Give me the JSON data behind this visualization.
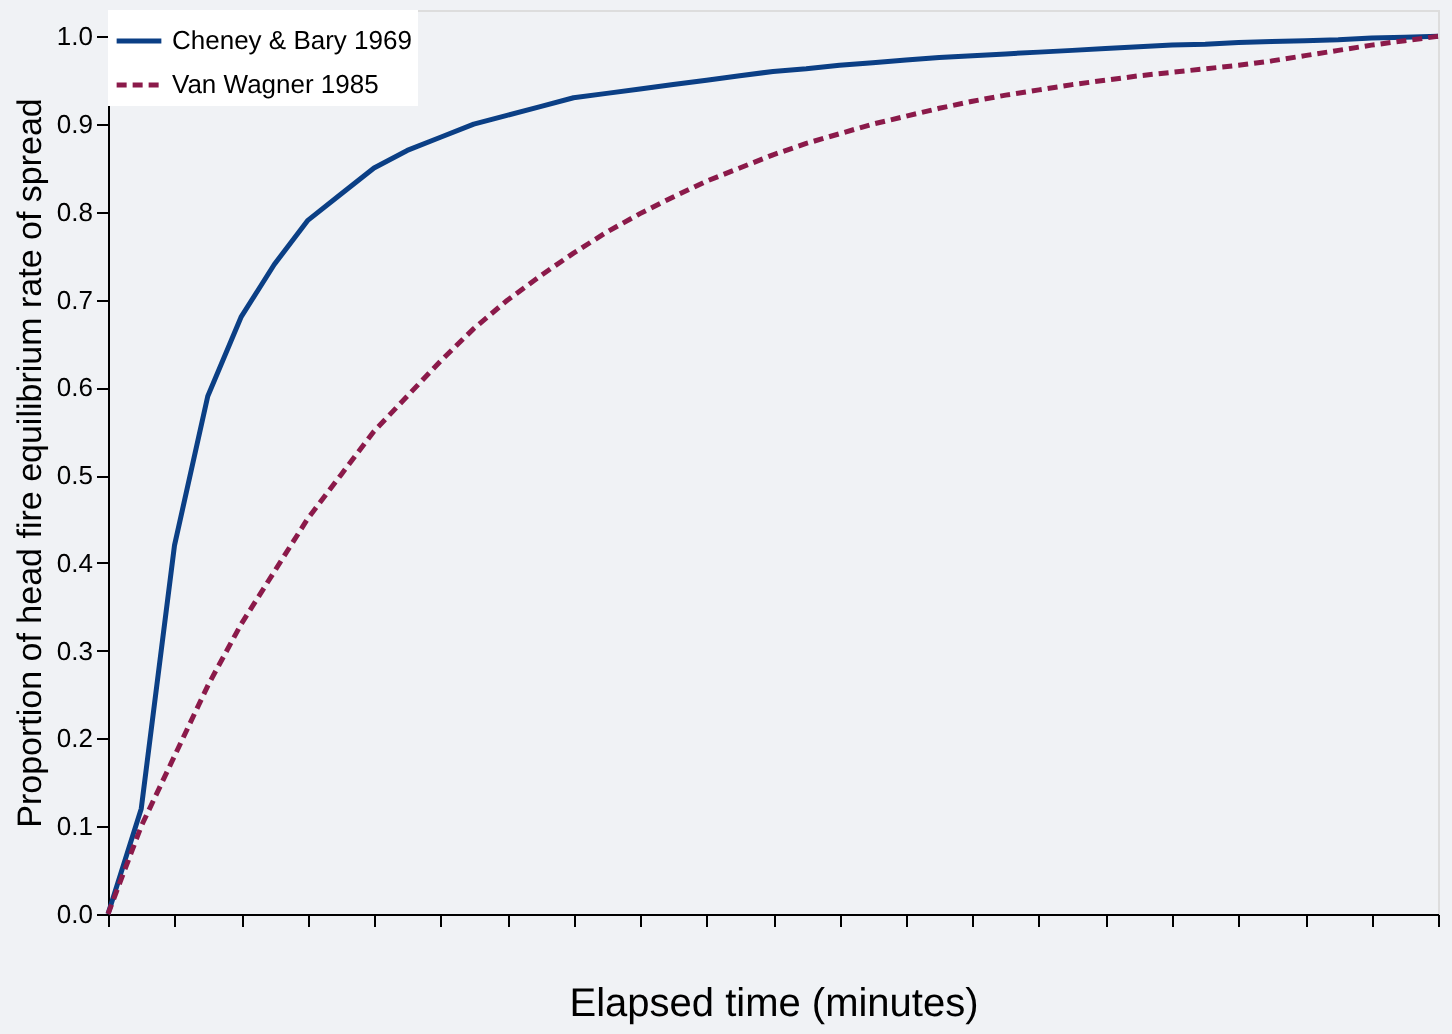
{
  "chart_data": {
    "type": "line",
    "xlabel": "Elapsed time (minutes)",
    "ylabel": "Proportion of head fire equilibrium rate of spread",
    "categories": [
      null,
      null,
      null,
      null,
      null,
      null,
      null,
      null,
      null,
      null,
      null,
      null,
      null,
      null,
      null,
      null,
      null,
      null,
      null,
      null,
      null,
      null,
      null,
      null,
      null,
      null,
      null,
      null,
      null,
      null,
      null,
      null,
      null,
      null,
      null,
      null,
      null,
      null,
      null,
      null,
      null
    ],
    "series": [
      {
        "name": "Cheney & Bary 1969",
        "color": "#0b3f85",
        "line_style": "solid",
        "values": [
          0.0,
          0.12,
          0.42,
          0.59,
          0.68,
          0.74,
          0.79,
          0.82,
          0.85,
          0.87,
          0.885,
          0.9,
          0.91,
          0.92,
          0.93,
          0.935,
          0.94,
          0.945,
          0.95,
          0.955,
          0.96,
          0.963,
          0.967,
          0.97,
          0.973,
          0.976,
          0.978,
          0.98,
          0.982,
          0.984,
          0.986,
          0.988,
          0.99,
          0.991,
          0.993,
          0.994,
          0.995,
          0.996,
          0.998,
          0.999,
          1.0
        ]
      },
      {
        "name": "Van Wagner 1985",
        "color": "#8b1a4a",
        "line_style": "dashed",
        "values": [
          0.0,
          0.1,
          0.18,
          0.26,
          0.33,
          0.39,
          0.45,
          0.5,
          0.55,
          0.59,
          0.63,
          0.667,
          0.699,
          0.727,
          0.753,
          0.777,
          0.798,
          0.817,
          0.835,
          0.85,
          0.865,
          0.878,
          0.889,
          0.9,
          0.909,
          0.918,
          0.926,
          0.933,
          0.939,
          0.945,
          0.95,
          0.955,
          0.959,
          0.963,
          0.967,
          0.972,
          0.978,
          0.984,
          0.99,
          0.995,
          1.0
        ]
      }
    ],
    "ylim": [
      0,
      1.03
    ],
    "yticks": [
      {
        "value": 0,
        "label": "0.0"
      },
      {
        "value": 0.1,
        "label": "0.1"
      },
      {
        "value": 0.2,
        "label": "0.2"
      },
      {
        "value": 0.3,
        "label": "0.3"
      },
      {
        "value": 0.4,
        "label": "0.4"
      },
      {
        "value": 0.5,
        "label": "0.5"
      },
      {
        "value": 0.6,
        "label": "0.6"
      },
      {
        "value": 0.7,
        "label": "0.7"
      },
      {
        "value": 0.8,
        "label": "0.8"
      },
      {
        "value": 0.9,
        "label": "0.9"
      },
      {
        "value": 1,
        "label": "1.0"
      }
    ],
    "tick_labels": "y",
    "grid": false,
    "legend": "top left",
    "marker": "none"
  }
}
